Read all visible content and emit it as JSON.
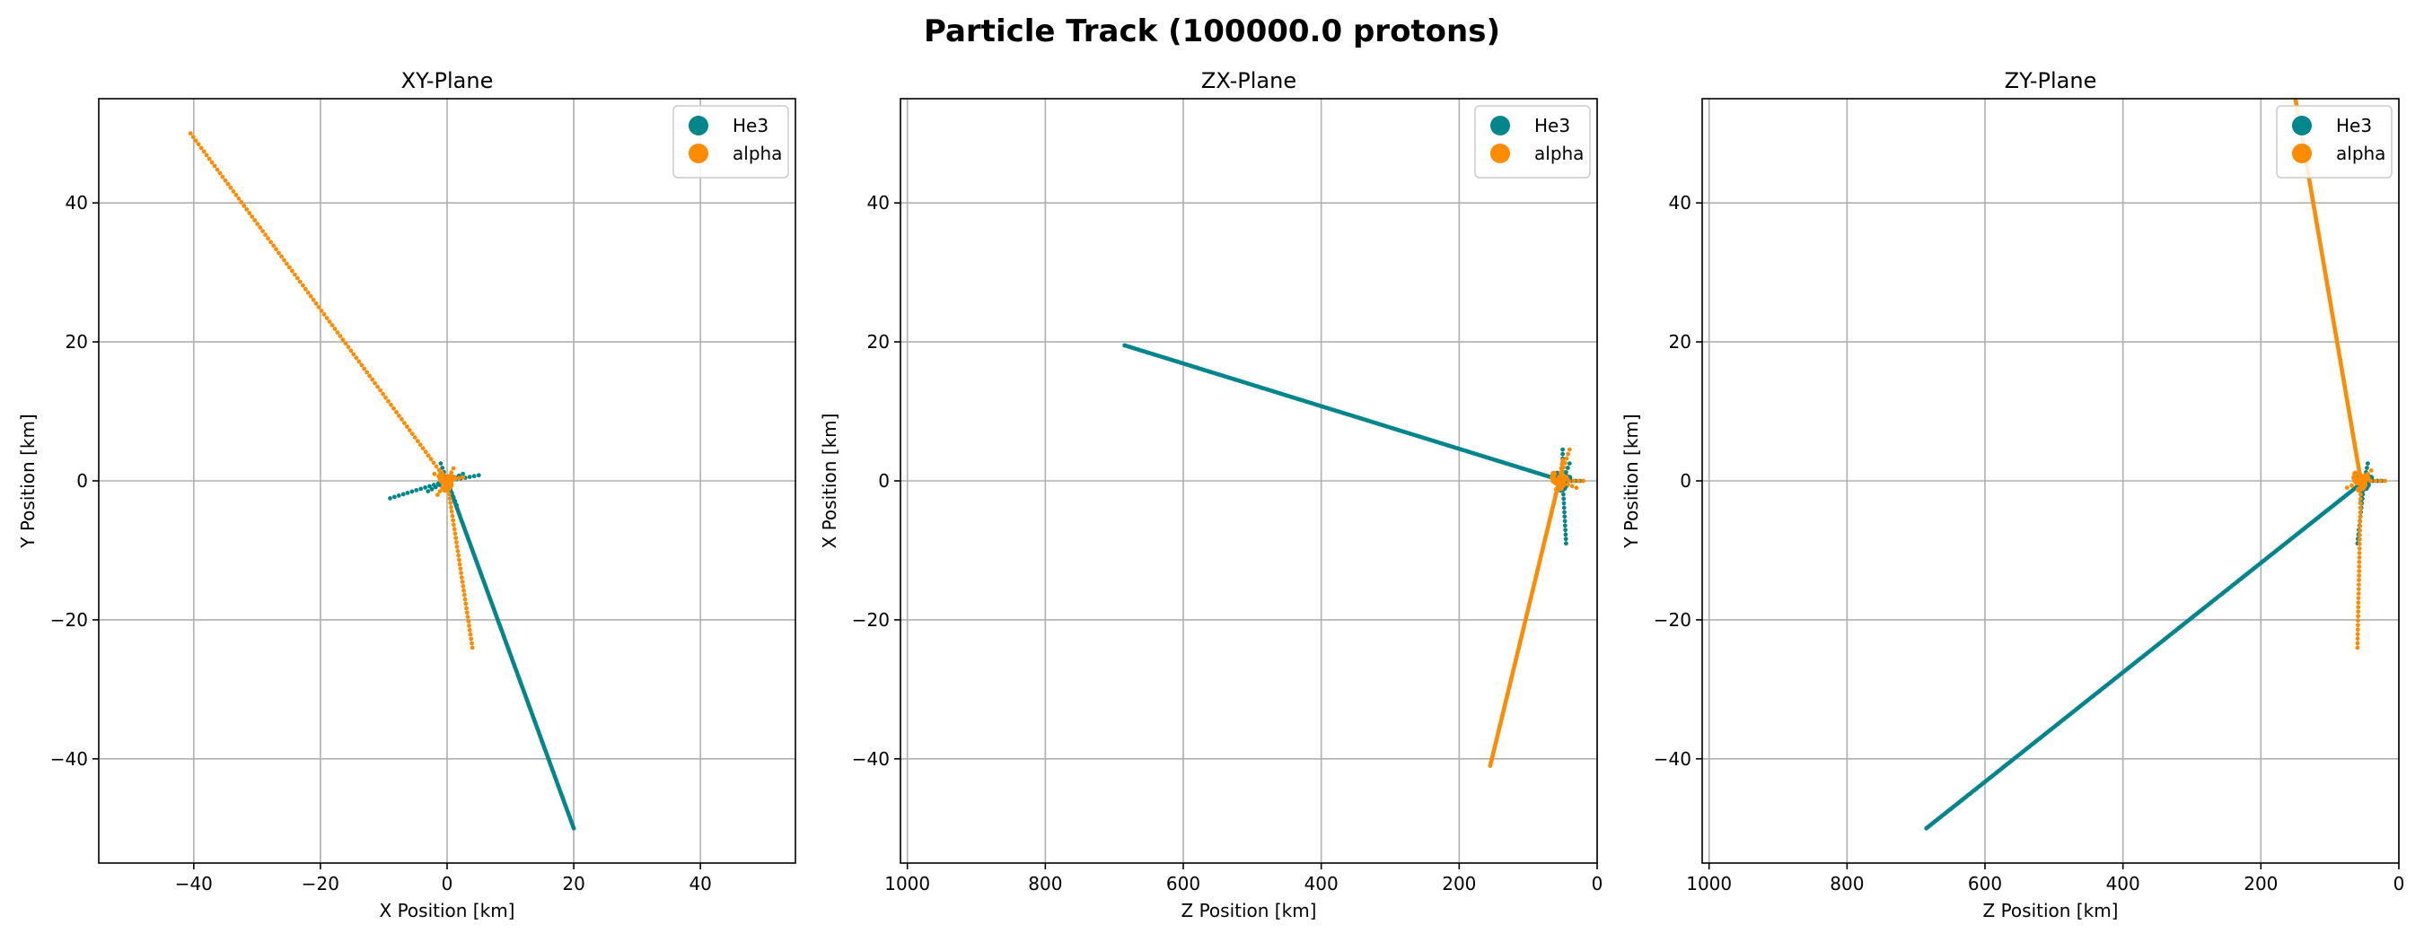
{
  "figure": {
    "title": "Particle Track (100000.0 protons)"
  },
  "colors": {
    "He3": "#00868B",
    "alpha": "#FF8C00",
    "grid": "#b0b0b0"
  },
  "chart_data": [
    {
      "type": "scatter",
      "title": "XY-Plane",
      "xlabel": "X Position [km]",
      "ylabel": "Y Position [km]",
      "xlim": [
        -55,
        55
      ],
      "ylim": [
        -55,
        55
      ],
      "x_reversed": false,
      "xticks": [
        -40,
        -20,
        0,
        20,
        40
      ],
      "yticks": [
        -40,
        -20,
        0,
        20,
        40
      ],
      "grid": true,
      "legend": "top-right",
      "series": [
        {
          "name": "He3",
          "color": "#00868B",
          "tracks": [
            {
              "from": [
                0,
                0
              ],
              "to": [
                20,
                -50
              ],
              "dense": true
            },
            {
              "from": [
                0,
                0
              ],
              "to": [
                -9,
                -2.5
              ],
              "dense": false
            },
            {
              "from": [
                0,
                0
              ],
              "to": [
                5,
                0.8
              ],
              "dense": false
            },
            {
              "from": [
                0,
                0
              ],
              "to": [
                -1,
                2.5
              ],
              "dense": false
            },
            {
              "from": [
                0,
                0
              ],
              "to": [
                2.5,
                1
              ],
              "dense": false
            },
            {
              "from": [
                0,
                0
              ],
              "to": [
                -3,
                -1.5
              ],
              "dense": false
            },
            {
              "from": [
                0,
                0
              ],
              "to": [
                1.5,
                -3.5
              ],
              "dense": false
            }
          ]
        },
        {
          "name": "alpha",
          "color": "#FF8C00",
          "tracks": [
            {
              "from": [
                0,
                0
              ],
              "to": [
                -40.5,
                50
              ],
              "dense": false
            },
            {
              "from": [
                0,
                0
              ],
              "to": [
                4,
                -24
              ],
              "dense": false
            },
            {
              "from": [
                0,
                0
              ],
              "to": [
                2.5,
                0.5
              ],
              "dense": false
            },
            {
              "from": [
                0,
                0
              ],
              "to": [
                -2,
                1
              ],
              "dense": false
            },
            {
              "from": [
                0,
                0
              ],
              "to": [
                -1.5,
                -2
              ],
              "dense": false
            },
            {
              "from": [
                0,
                0
              ],
              "to": [
                1,
                1.8
              ],
              "dense": false
            }
          ]
        }
      ]
    },
    {
      "type": "scatter",
      "title": "ZX-Plane",
      "xlabel": "Z Position [km]",
      "ylabel": "X Position [km]",
      "xlim": [
        1010,
        0
      ],
      "ylim": [
        -55,
        55
      ],
      "x_reversed": true,
      "xticks": [
        1000,
        800,
        600,
        400,
        200,
        0
      ],
      "yticks": [
        -40,
        -20,
        0,
        20,
        40
      ],
      "grid": true,
      "legend": "top-right",
      "series": [
        {
          "name": "He3",
          "color": "#00868B",
          "tracks": [
            {
              "from": [
                50,
                0
              ],
              "to": [
                685,
                19.5
              ],
              "dense": true
            },
            {
              "from": [
                50,
                0
              ],
              "to": [
                45,
                -9
              ],
              "dense": false
            },
            {
              "from": [
                50,
                0
              ],
              "to": [
                50,
                4.5
              ],
              "dense": false
            },
            {
              "from": [
                50,
                0
              ],
              "to": [
                25,
                0
              ],
              "dense": false
            },
            {
              "from": [
                50,
                0
              ],
              "to": [
                40,
                2.5
              ],
              "dense": false
            },
            {
              "from": [
                50,
                0
              ],
              "to": [
                60,
                -2
              ],
              "dense": false
            }
          ]
        },
        {
          "name": "alpha",
          "color": "#FF8C00",
          "tracks": [
            {
              "from": [
                55,
                0
              ],
              "to": [
                155,
                -41
              ],
              "dense": true
            },
            {
              "from": [
                55,
                0
              ],
              "to": [
                20,
                0
              ],
              "dense": false
            },
            {
              "from": [
                55,
                0
              ],
              "to": [
                40,
                4.5
              ],
              "dense": false
            },
            {
              "from": [
                55,
                0
              ],
              "to": [
                50,
                3
              ],
              "dense": false
            },
            {
              "from": [
                55,
                0
              ],
              "to": [
                30,
                -1
              ],
              "dense": false
            }
          ]
        }
      ]
    },
    {
      "type": "scatter",
      "title": "ZY-Plane",
      "xlabel": "Z Position [km]",
      "ylabel": "Y Position [km]",
      "xlim": [
        1010,
        0
      ],
      "ylim": [
        -55,
        55
      ],
      "x_reversed": true,
      "xticks": [
        1000,
        800,
        600,
        400,
        200,
        0
      ],
      "yticks": [
        -40,
        -20,
        0,
        20,
        40
      ],
      "grid": true,
      "legend": "top-right",
      "series": [
        {
          "name": "He3",
          "color": "#00868B",
          "tracks": [
            {
              "from": [
                50,
                0
              ],
              "to": [
                685,
                -50
              ],
              "dense": true
            },
            {
              "from": [
                50,
                0
              ],
              "to": [
                60,
                -9
              ],
              "dense": false
            },
            {
              "from": [
                50,
                0
              ],
              "to": [
                45,
                2.5
              ],
              "dense": false
            },
            {
              "from": [
                50,
                0
              ],
              "to": [
                25,
                0
              ],
              "dense": false
            },
            {
              "from": [
                50,
                0
              ],
              "to": [
                55,
                -3
              ],
              "dense": false
            }
          ]
        },
        {
          "name": "alpha",
          "color": "#FF8C00",
          "tracks": [
            {
              "from": [
                55,
                0
              ],
              "to": [
                150,
                55
              ],
              "dense": true
            },
            {
              "from": [
                55,
                0
              ],
              "to": [
                60,
                -24
              ],
              "dense": false
            },
            {
              "from": [
                55,
                0
              ],
              "to": [
                20,
                0
              ],
              "dense": false
            },
            {
              "from": [
                55,
                0
              ],
              "to": [
                75,
                -1
              ],
              "dense": false
            },
            {
              "from": [
                55,
                0
              ],
              "to": [
                40,
                1.5
              ],
              "dense": false
            }
          ]
        }
      ]
    }
  ]
}
